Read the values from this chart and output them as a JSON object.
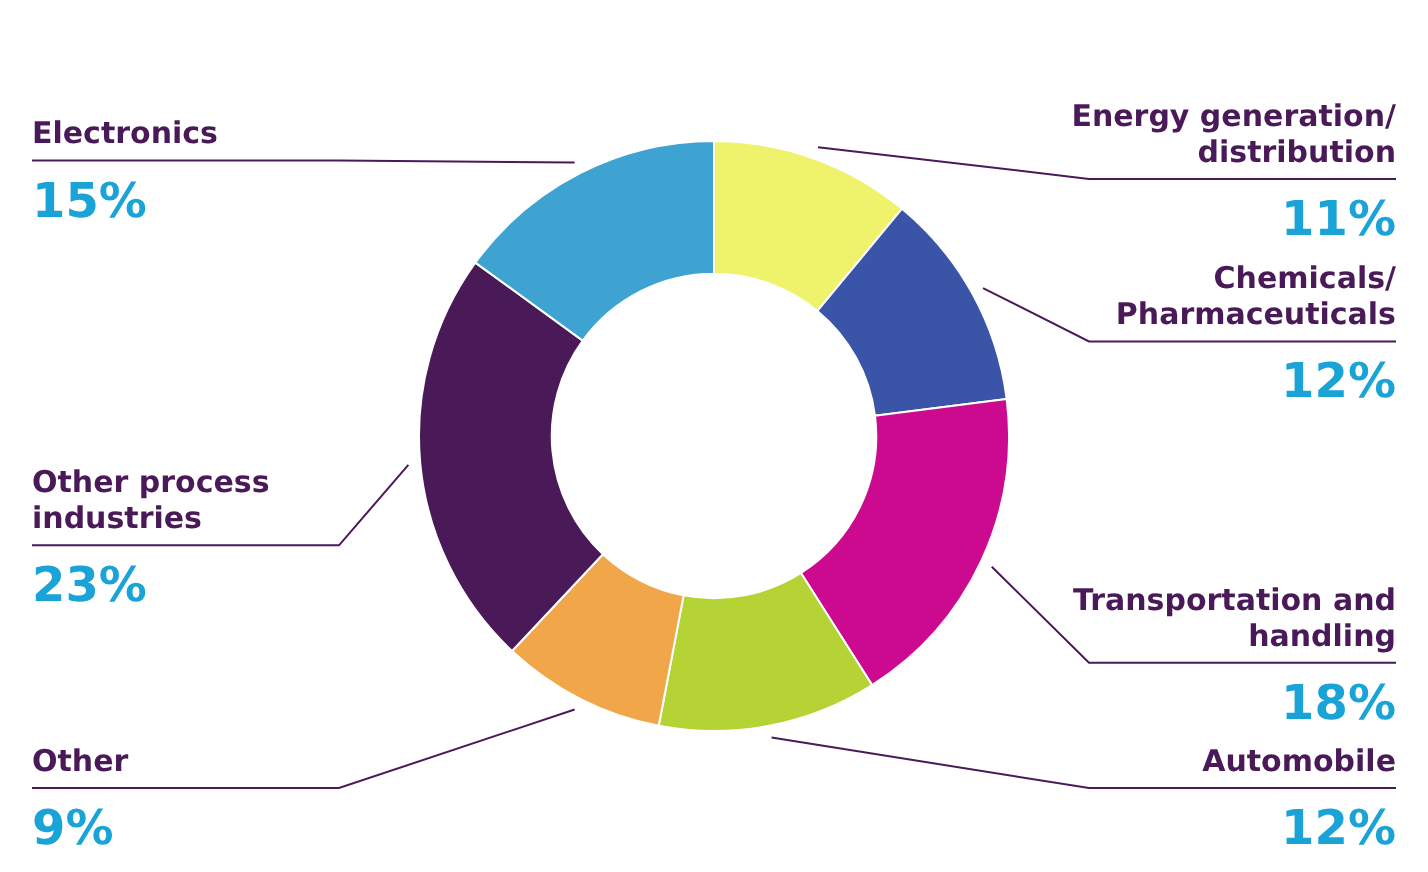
{
  "chart_data": {
    "type": "donut",
    "categories": [
      "Energy generation/ distribution",
      "Chemicals/ Pharmaceuticals",
      "Transportation and handling",
      "Automobile",
      "Other",
      "Other process industries",
      "Electronics"
    ],
    "values": [
      11,
      12,
      18,
      12,
      9,
      23,
      15
    ],
    "colors": [
      "#eef36b",
      "#3a55a8",
      "#cc0a8f",
      "#b5d334",
      "#f1a64a",
      "#4a1a58",
      "#3fa3d1"
    ],
    "value_labels": [
      "11%",
      "12%",
      "18%",
      "12%",
      "9%",
      "23%",
      "15%"
    ],
    "legend": false
  }
}
